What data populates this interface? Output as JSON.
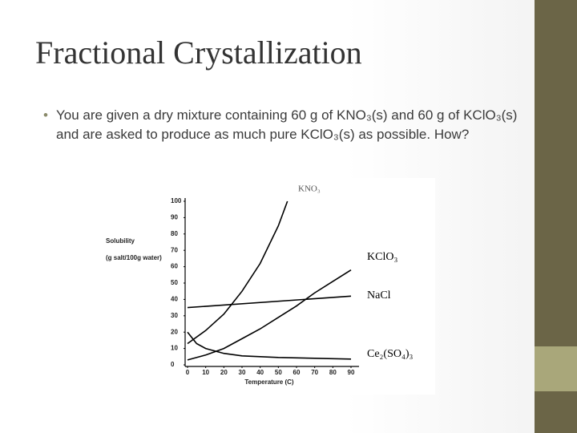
{
  "title": "Fractional Crystallization",
  "bullet": "You are given a dry mixture containing 60 g of KNO₃(s) and 60 g of KClO₃(s) and are asked to produce as much pure KClO₃(s) as possible.  How?",
  "chart_data": {
    "type": "line",
    "y_label_lines": [
      "Solubility",
      "(g salt/100g water)"
    ],
    "x_label": "Temperature (C)",
    "xlim": [
      0,
      90
    ],
    "xticks": [
      0,
      10,
      20,
      30,
      40,
      50,
      60,
      70,
      80,
      90
    ],
    "ylim": [
      0,
      100
    ],
    "yticks": [
      0,
      10,
      20,
      30,
      40,
      50,
      60,
      70,
      80,
      90,
      100
    ],
    "series": [
      {
        "name": "KNO₃",
        "color": "#000000",
        "x": [
          0,
          10,
          20,
          30,
          40,
          50,
          55
        ],
        "values": [
          13,
          21,
          31,
          45,
          62,
          85,
          100
        ]
      },
      {
        "name": "KClO₃",
        "color": "#000000",
        "x": [
          0,
          10,
          20,
          30,
          40,
          50,
          60,
          70,
          80,
          90
        ],
        "values": [
          3,
          6,
          10,
          16,
          22,
          29,
          36,
          44,
          51,
          58
        ]
      },
      {
        "name": "NaCl",
        "color": "#000000",
        "x": [
          0,
          90
        ],
        "values": [
          35,
          42
        ]
      },
      {
        "name": "Ce₂(SO₄)₃",
        "color": "#000000",
        "x": [
          0,
          5,
          10,
          20,
          30,
          50,
          70,
          90
        ],
        "values": [
          20,
          13,
          10,
          7,
          5.5,
          4.5,
          4,
          3.5
        ]
      }
    ]
  }
}
